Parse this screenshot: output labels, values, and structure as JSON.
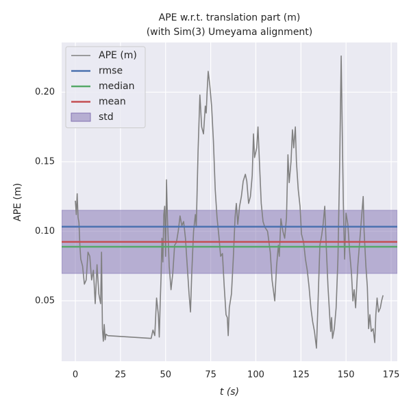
{
  "chart_data": {
    "type": "line",
    "title": "APE w.r.t. translation part (m)",
    "subtitle": "(with Sim(3) Umeyama alignment)",
    "x_label": "t (s)",
    "y_label": "APE (m)",
    "xlim": [
      -7.6,
      178.4
    ],
    "ylim": [
      0.0066,
      0.2357
    ],
    "xticks": [
      0,
      25,
      50,
      75,
      100,
      125,
      150,
      175
    ],
    "yticks": [
      0.05,
      {
        "value": 0.1,
        "label": "0.10"
      },
      0.15,
      {
        "value": 0.2,
        "label": "0.20"
      }
    ],
    "grid": true,
    "legend": "upper left",
    "series": [
      {
        "name": "APE (m)",
        "color": "#808080",
        "x": [
          0,
          0.5,
          1,
          1.5,
          2,
          2.5,
          3,
          4,
          5,
          6,
          7,
          8,
          9,
          10,
          11,
          12,
          13,
          14,
          14.5,
          15,
          15.5,
          16,
          16.5,
          17,
          18,
          42,
          43,
          44,
          45,
          46,
          46.5,
          47,
          47.5,
          48,
          48.5,
          49,
          49.5,
          50,
          50.5,
          51,
          52,
          53,
          54,
          55,
          56,
          57,
          58,
          59,
          60,
          61,
          62,
          63,
          63.8,
          64.5,
          65.5,
          66.5,
          67,
          68,
          69,
          70,
          71,
          72,
          72.5,
          73,
          73.6,
          74.5,
          75.5,
          76.5,
          77.5,
          78.5,
          79.5,
          80.5,
          81.5,
          82.5,
          83.5,
          84.2,
          84.7,
          85.3,
          86.5,
          87.5,
          88.5,
          89.2,
          90,
          91,
          92,
          93,
          94.2,
          95,
          96,
          97,
          98,
          98.7,
          99.3,
          100.5,
          101.2,
          102,
          103,
          104,
          105,
          106.5,
          108,
          109,
          110.5,
          111.5,
          112.5,
          113,
          113.9,
          115,
          116,
          117,
          117.8,
          118.5,
          119.5,
          120.3,
          121,
          121.9,
          122.5,
          123.5,
          124.5,
          125.3,
          126.5,
          127.5,
          128.5,
          129.5,
          130.5,
          131.5,
          132.5,
          133.6,
          134.5,
          135.5,
          136.5,
          137.3,
          138.2,
          139,
          140,
          141,
          141.5,
          142,
          142.5,
          143.5,
          144.5,
          145.5,
          146.5,
          147.3,
          147.8,
          148.5,
          149.2,
          150,
          151,
          152,
          153,
          153.8,
          154.5,
          155.3,
          156.5,
          158,
          159.5,
          160,
          161,
          161.8,
          162.5,
          163.2,
          164,
          165,
          165.9,
          166.5,
          167.2,
          168,
          169,
          169.7,
          170.5
        ],
        "values": [
          0.122,
          0.112,
          0.127,
          0.11,
          0.106,
          0.09,
          0.08,
          0.075,
          0.062,
          0.065,
          0.085,
          0.082,
          0.065,
          0.072,
          0.048,
          0.076,
          0.055,
          0.048,
          0.085,
          0.03,
          0.021,
          0.033,
          0.022,
          0.026,
          0.025,
          0.023,
          0.029,
          0.025,
          0.052,
          0.04,
          0.024,
          0.048,
          0.068,
          0.095,
          0.078,
          0.112,
          0.118,
          0.082,
          0.137,
          0.11,
          0.075,
          0.058,
          0.07,
          0.09,
          0.092,
          0.1,
          0.111,
          0.104,
          0.107,
          0.095,
          0.075,
          0.055,
          0.042,
          0.07,
          0.1,
          0.112,
          0.103,
          0.158,
          0.198,
          0.175,
          0.17,
          0.19,
          0.185,
          0.2,
          0.215,
          0.205,
          0.19,
          0.165,
          0.13,
          0.11,
          0.097,
          0.082,
          0.084,
          0.06,
          0.04,
          0.038,
          0.025,
          0.045,
          0.055,
          0.08,
          0.11,
          0.12,
          0.105,
          0.118,
          0.125,
          0.136,
          0.141,
          0.136,
          0.12,
          0.125,
          0.14,
          0.17,
          0.153,
          0.16,
          0.175,
          0.15,
          0.12,
          0.107,
          0.103,
          0.1,
          0.085,
          0.065,
          0.05,
          0.075,
          0.09,
          0.082,
          0.109,
          0.1,
          0.095,
          0.11,
          0.155,
          0.135,
          0.15,
          0.173,
          0.16,
          0.175,
          0.15,
          0.13,
          0.118,
          0.098,
          0.092,
          0.08,
          0.072,
          0.06,
          0.045,
          0.035,
          0.028,
          0.016,
          0.05,
          0.09,
          0.097,
          0.105,
          0.118,
          0.09,
          0.06,
          0.038,
          0.028,
          0.038,
          0.023,
          0.03,
          0.045,
          0.08,
          0.15,
          0.226,
          0.18,
          0.12,
          0.08,
          0.113,
          0.105,
          0.085,
          0.07,
          0.05,
          0.058,
          0.045,
          0.075,
          0.1,
          0.125,
          0.1,
          0.075,
          0.06,
          0.03,
          0.04,
          0.028,
          0.03,
          0.02,
          0.04,
          0.052,
          0.042,
          0.045,
          0.05,
          0.054
        ]
      }
    ],
    "reference_lines": [
      {
        "name": "rmse",
        "color": "#4c72b0",
        "value": 0.1033
      },
      {
        "name": "median",
        "color": "#55a868",
        "value": 0.0889
      },
      {
        "name": "mean",
        "color": "#c44e52",
        "value": 0.0924
      }
    ],
    "band": {
      "name": "std",
      "color": "#8172b2",
      "value": 0.0227
    }
  }
}
